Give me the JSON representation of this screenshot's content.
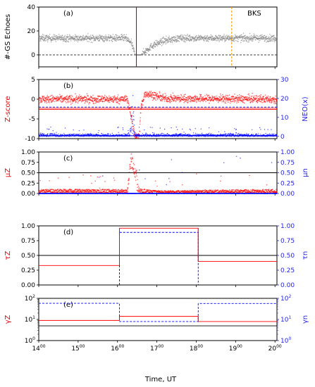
{
  "figure": {
    "xlabel": "Time, UT",
    "station": "BKS",
    "xticks": [
      {
        "base": "14",
        "sup": "00",
        "x": 14
      },
      {
        "base": "15",
        "sup": "00",
        "x": 15
      },
      {
        "base": "16",
        "sup": "00",
        "x": 16
      },
      {
        "base": "17",
        "sup": "00",
        "x": 17
      },
      {
        "base": "18",
        "sup": "00",
        "x": 18
      },
      {
        "base": "19",
        "sup": "00",
        "x": 19
      },
      {
        "base": "20",
        "sup": "00",
        "x": 20
      }
    ],
    "xlim": [
      14,
      20.05
    ]
  },
  "chart_data": [
    {
      "panel": "(a)",
      "type": "scatter",
      "ylabel": "#-GS Echoes",
      "ylim": [
        -10,
        40
      ],
      "yticks": [
        "0",
        "20",
        "40"
      ],
      "ytick_values": [
        0,
        20,
        40
      ],
      "dashed_hline": 0,
      "vline_red": 16.48,
      "vline_orange": 18.9,
      "series": [
        {
          "color": "#808080",
          "profile": [
            [
              14.0,
              14
            ],
            [
              16.2,
              14
            ],
            [
              16.35,
              10
            ],
            [
              16.45,
              0
            ],
            [
              16.6,
              0
            ],
            [
              16.7,
              3
            ],
            [
              16.9,
              8
            ],
            [
              17.2,
              12
            ],
            [
              17.6,
              14
            ],
            [
              20.05,
              14
            ]
          ]
        }
      ]
    },
    {
      "panel": "(b)",
      "type": "scatter",
      "ylabel": "Z-score",
      "ylabel_right": "NEO(x)",
      "ylim": [
        -10,
        5
      ],
      "yticks": [
        "-10",
        "-5",
        "0",
        "5"
      ],
      "ytick_values": [
        -10,
        -5,
        0,
        5
      ],
      "ylim_right": [
        -1.2,
        30
      ],
      "yticks_right": [
        "0",
        "10",
        "20",
        "30"
      ],
      "ytick_right_values": [
        0,
        10,
        20,
        30
      ],
      "hlines_red": [
        -2.3,
        -2.6
      ],
      "hlines_blue": [
        -2.0
      ],
      "series": [
        {
          "color": "#ff0000",
          "profile": [
            [
              14.0,
              0
            ],
            [
              16.25,
              0
            ],
            [
              16.3,
              -2
            ],
            [
              16.38,
              -6
            ],
            [
              16.45,
              -9.6
            ],
            [
              16.55,
              -9.6
            ],
            [
              16.6,
              -2
            ],
            [
              16.7,
              1.5
            ],
            [
              16.9,
              1
            ],
            [
              17.2,
              0.2
            ],
            [
              20.05,
              0
            ]
          ]
        },
        {
          "color": "#0000ff",
          "profile": [
            [
              14.0,
              0
            ],
            [
              16.3,
              0
            ],
            [
              16.4,
              25
            ],
            [
              16.45,
              0
            ],
            [
              20.05,
              0
            ]
          ]
        }
      ]
    },
    {
      "panel": "(c)",
      "type": "scatter",
      "ylabel": "μZ",
      "ylabel_right": "μn",
      "ylim": [
        0,
        1
      ],
      "yticks": [
        "0.00",
        "0.25",
        "0.50",
        "0.75",
        "1.00"
      ],
      "ytick_values": [
        0,
        0.25,
        0.5,
        0.75,
        1.0
      ],
      "yticks_right": [
        "0.00",
        "0.25",
        "0.50",
        "0.75",
        "1.00"
      ],
      "hlines_black": [
        0.5
      ],
      "series": [
        {
          "color": "#ff0000",
          "profile": [
            [
              14.0,
              0.06
            ],
            [
              16.25,
              0.06
            ],
            [
              16.3,
              0.6
            ],
            [
              16.35,
              0.95
            ],
            [
              16.45,
              0.6
            ],
            [
              16.55,
              0.07
            ],
            [
              17.0,
              0.04
            ],
            [
              20.05,
              0.06
            ]
          ]
        },
        {
          "color": "#0000ff",
          "profile": [
            [
              14.0,
              0.0
            ],
            [
              20.05,
              0.0
            ]
          ]
        }
      ]
    },
    {
      "panel": "(d)",
      "type": "line",
      "ylabel": "τZ",
      "ylabel_right": "τn",
      "ylim": [
        0,
        1
      ],
      "yticks": [
        "0.00",
        "0.25",
        "0.50",
        "0.75",
        "1.00"
      ],
      "ytick_values": [
        0,
        0.25,
        0.5,
        0.75,
        1.0
      ],
      "yticks_right": [
        "0.00",
        "0.25",
        "0.50",
        "0.75",
        "1.00"
      ],
      "hlines_black": [
        0.5
      ],
      "series": [
        {
          "color": "#ff0000",
          "style": "solid",
          "steps": [
            [
              14.0,
              16.05,
              0.33
            ],
            [
              16.05,
              18.05,
              0.96
            ],
            [
              18.05,
              20.05,
              0.4
            ]
          ]
        },
        {
          "color": "#0000ff",
          "style": "dashed",
          "steps": [
            [
              16.05,
              18.05,
              0.89
            ]
          ]
        }
      ]
    },
    {
      "panel": "(e)",
      "type": "line",
      "ylabel": "γZ",
      "ylabel_right": "γn",
      "yscale": "log",
      "ylim": [
        1,
        100
      ],
      "yticks": [
        {
          "base": "10",
          "sup": "0",
          "v": 1
        },
        {
          "base": "10",
          "sup": "1",
          "v": 10
        },
        {
          "base": "10",
          "sup": "2",
          "v": 100
        }
      ],
      "hlines_black": [
        5
      ],
      "series": [
        {
          "color": "#ff0000",
          "style": "solid",
          "steps": [
            [
              14.0,
              16.05,
              9
            ],
            [
              16.05,
              18.05,
              14
            ],
            [
              18.05,
              20.05,
              8
            ]
          ]
        },
        {
          "color": "#0000ff",
          "style": "dashed",
          "steps": [
            [
              14.0,
              16.05,
              58
            ],
            [
              16.05,
              18.05,
              8
            ],
            [
              18.05,
              20.05,
              57
            ]
          ]
        }
      ]
    }
  ]
}
